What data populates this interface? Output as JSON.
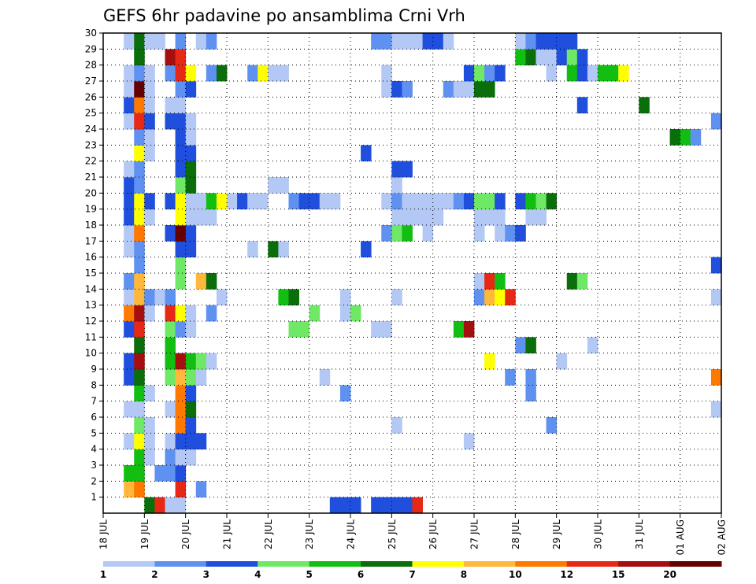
{
  "chart_data": {
    "type": "heatmap",
    "title": "GEFS 6hr padavine po ansamblima Crni Vrh",
    "xlabel": "",
    "ylabel": "",
    "x_ticks": [
      "18 JUL",
      "19 JUL",
      "20 JUL",
      "21 JUL",
      "22 JUL",
      "23 JUL",
      "24 JUL",
      "25 JUL",
      "26 JUL",
      "27 JUL",
      "28 JUL",
      "29 JUL",
      "30 JUL",
      "31 JUL",
      "01 AUG",
      "02 AUG"
    ],
    "y_ticks": [
      "1",
      "2",
      "3",
      "4",
      "5",
      "6",
      "7",
      "8",
      "9",
      "10",
      "11",
      "12",
      "13",
      "14",
      "15",
      "16",
      "17",
      "18",
      "19",
      "20",
      "21",
      "22",
      "23",
      "24",
      "25",
      "26",
      "27",
      "28",
      "29",
      "30"
    ],
    "x_steps_per_day": 4,
    "x_range_steps": [
      0,
      60
    ],
    "y_range": [
      0,
      30
    ],
    "grid": true,
    "colorbar": {
      "labels": [
        "1",
        "2",
        "3",
        "4",
        "5",
        "6",
        "7",
        "8",
        "10",
        "12",
        "15",
        "20"
      ],
      "colors": [
        "#b4c8f5",
        "#5f91f0",
        "#1f4fdc",
        "#6fe866",
        "#12be12",
        "#0a6e0a",
        "#ffff00",
        "#ffb83c",
        "#ff7800",
        "#e62814",
        "#a50f0f",
        "#640000"
      ]
    },
    "cells": [
      [
        4,
        0,
        5
      ],
      [
        5,
        0,
        9
      ],
      [
        6,
        0,
        0
      ],
      [
        7,
        0,
        0
      ],
      [
        22,
        0,
        2
      ],
      [
        23,
        0,
        2
      ],
      [
        24,
        0,
        2
      ],
      [
        26,
        0,
        2
      ],
      [
        27,
        0,
        2
      ],
      [
        28,
        0,
        2
      ],
      [
        29,
        0,
        2
      ],
      [
        30,
        0,
        9
      ],
      [
        2,
        1,
        7
      ],
      [
        3,
        1,
        8
      ],
      [
        7,
        1,
        9
      ],
      [
        9,
        1,
        1
      ],
      [
        2,
        2,
        4
      ],
      [
        3,
        2,
        4
      ],
      [
        5,
        2,
        1
      ],
      [
        6,
        2,
        1
      ],
      [
        7,
        2,
        2
      ],
      [
        3,
        3,
        4
      ],
      [
        4,
        3,
        0
      ],
      [
        6,
        3,
        1
      ],
      [
        7,
        3,
        0
      ],
      [
        8,
        3,
        0
      ],
      [
        2,
        4,
        0
      ],
      [
        3,
        4,
        6
      ],
      [
        4,
        4,
        0
      ],
      [
        6,
        4,
        0
      ],
      [
        7,
        4,
        2
      ],
      [
        8,
        4,
        2
      ],
      [
        9,
        4,
        2
      ],
      [
        35,
        4,
        0
      ],
      [
        3,
        5,
        3
      ],
      [
        4,
        5,
        0
      ],
      [
        7,
        5,
        8
      ],
      [
        8,
        5,
        2
      ],
      [
        28,
        5,
        0
      ],
      [
        43,
        5,
        1
      ],
      [
        2,
        6,
        0
      ],
      [
        3,
        6,
        0
      ],
      [
        6,
        6,
        0
      ],
      [
        7,
        6,
        8
      ],
      [
        8,
        6,
        5
      ],
      [
        59,
        6,
        0
      ],
      [
        3,
        7,
        4
      ],
      [
        4,
        7,
        0
      ],
      [
        7,
        7,
        8
      ],
      [
        8,
        7,
        2
      ],
      [
        23,
        7,
        1
      ],
      [
        41,
        7,
        1
      ],
      [
        2,
        8,
        2
      ],
      [
        3,
        8,
        5
      ],
      [
        6,
        8,
        3
      ],
      [
        7,
        8,
        7
      ],
      [
        8,
        8,
        3
      ],
      [
        9,
        8,
        0
      ],
      [
        21,
        8,
        0
      ],
      [
        39,
        8,
        1
      ],
      [
        41,
        8,
        1
      ],
      [
        59,
        8,
        8
      ],
      [
        2,
        9,
        2
      ],
      [
        3,
        9,
        10
      ],
      [
        6,
        9,
        4
      ],
      [
        7,
        9,
        10
      ],
      [
        8,
        9,
        4
      ],
      [
        9,
        9,
        3
      ],
      [
        10,
        9,
        0
      ],
      [
        37,
        9,
        6
      ],
      [
        44,
        9,
        0
      ],
      [
        3,
        10,
        5
      ],
      [
        6,
        10,
        4
      ],
      [
        40,
        10,
        1
      ],
      [
        41,
        10,
        5
      ],
      [
        47,
        10,
        0
      ],
      [
        2,
        11,
        2
      ],
      [
        3,
        11,
        9
      ],
      [
        6,
        11,
        3
      ],
      [
        7,
        11,
        1
      ],
      [
        8,
        11,
        0
      ],
      [
        18,
        11,
        3
      ],
      [
        19,
        11,
        3
      ],
      [
        26,
        11,
        0
      ],
      [
        27,
        11,
        0
      ],
      [
        34,
        11,
        4
      ],
      [
        35,
        11,
        10
      ],
      [
        2,
        12,
        8
      ],
      [
        3,
        12,
        10
      ],
      [
        4,
        12,
        0
      ],
      [
        6,
        12,
        9
      ],
      [
        7,
        12,
        6
      ],
      [
        8,
        12,
        0
      ],
      [
        10,
        12,
        1
      ],
      [
        20,
        12,
        3
      ],
      [
        23,
        12,
        0
      ],
      [
        24,
        12,
        3
      ],
      [
        2,
        13,
        0
      ],
      [
        3,
        13,
        7
      ],
      [
        4,
        13,
        1
      ],
      [
        5,
        13,
        0
      ],
      [
        6,
        13,
        1
      ],
      [
        11,
        13,
        0
      ],
      [
        17,
        13,
        4
      ],
      [
        18,
        13,
        5
      ],
      [
        23,
        13,
        0
      ],
      [
        28,
        13,
        0
      ],
      [
        36,
        13,
        1
      ],
      [
        37,
        13,
        7
      ],
      [
        38,
        13,
        6
      ],
      [
        39,
        13,
        9
      ],
      [
        59,
        13,
        0
      ],
      [
        2,
        14,
        1
      ],
      [
        3,
        14,
        7
      ],
      [
        7,
        14,
        3
      ],
      [
        9,
        14,
        7
      ],
      [
        10,
        14,
        5
      ],
      [
        36,
        14,
        0
      ],
      [
        37,
        14,
        9
      ],
      [
        38,
        14,
        4
      ],
      [
        45,
        14,
        5
      ],
      [
        46,
        14,
        3
      ],
      [
        3,
        15,
        1
      ],
      [
        7,
        15,
        3
      ],
      [
        59,
        15,
        2
      ],
      [
        2,
        16,
        0
      ],
      [
        3,
        16,
        1
      ],
      [
        7,
        16,
        2
      ],
      [
        8,
        16,
        2
      ],
      [
        14,
        16,
        0
      ],
      [
        16,
        16,
        5
      ],
      [
        17,
        16,
        0
      ],
      [
        25,
        16,
        2
      ],
      [
        2,
        17,
        0
      ],
      [
        3,
        17,
        8
      ],
      [
        6,
        17,
        2
      ],
      [
        7,
        17,
        11
      ],
      [
        8,
        17,
        2
      ],
      [
        27,
        17,
        1
      ],
      [
        28,
        17,
        3
      ],
      [
        29,
        17,
        4
      ],
      [
        31,
        17,
        0
      ],
      [
        36,
        17,
        0
      ],
      [
        38,
        17,
        0
      ],
      [
        39,
        17,
        1
      ],
      [
        40,
        17,
        2
      ],
      [
        2,
        18,
        2
      ],
      [
        3,
        18,
        6
      ],
      [
        4,
        18,
        0
      ],
      [
        7,
        18,
        6
      ],
      [
        8,
        18,
        0
      ],
      [
        9,
        18,
        0
      ],
      [
        10,
        18,
        0
      ],
      [
        28,
        18,
        0
      ],
      [
        29,
        18,
        0
      ],
      [
        30,
        18,
        0
      ],
      [
        31,
        18,
        0
      ],
      [
        32,
        18,
        0
      ],
      [
        36,
        18,
        0
      ],
      [
        37,
        18,
        0
      ],
      [
        38,
        18,
        0
      ],
      [
        41,
        18,
        0
      ],
      [
        42,
        18,
        0
      ],
      [
        2,
        19,
        2
      ],
      [
        3,
        19,
        6
      ],
      [
        4,
        19,
        2
      ],
      [
        6,
        19,
        2
      ],
      [
        7,
        19,
        6
      ],
      [
        8,
        19,
        0
      ],
      [
        9,
        19,
        0
      ],
      [
        10,
        19,
        4
      ],
      [
        11,
        19,
        6
      ],
      [
        12,
        19,
        0
      ],
      [
        13,
        19,
        2
      ],
      [
        14,
        19,
        0
      ],
      [
        15,
        19,
        0
      ],
      [
        18,
        19,
        1
      ],
      [
        19,
        19,
        2
      ],
      [
        20,
        19,
        2
      ],
      [
        21,
        19,
        0
      ],
      [
        22,
        19,
        0
      ],
      [
        27,
        19,
        0
      ],
      [
        28,
        19,
        1
      ],
      [
        29,
        19,
        0
      ],
      [
        30,
        19,
        0
      ],
      [
        31,
        19,
        0
      ],
      [
        32,
        19,
        0
      ],
      [
        33,
        19,
        0
      ],
      [
        34,
        19,
        1
      ],
      [
        35,
        19,
        2
      ],
      [
        36,
        19,
        3
      ],
      [
        37,
        19,
        3
      ],
      [
        38,
        19,
        2
      ],
      [
        40,
        19,
        2
      ],
      [
        41,
        19,
        4
      ],
      [
        42,
        19,
        3
      ],
      [
        43,
        19,
        5
      ],
      [
        2,
        20,
        2
      ],
      [
        3,
        20,
        1
      ],
      [
        7,
        20,
        3
      ],
      [
        8,
        20,
        5
      ],
      [
        16,
        20,
        0
      ],
      [
        17,
        20,
        0
      ],
      [
        28,
        20,
        0
      ],
      [
        2,
        21,
        0
      ],
      [
        3,
        21,
        1
      ],
      [
        7,
        21,
        2
      ],
      [
        8,
        21,
        5
      ],
      [
        28,
        21,
        2
      ],
      [
        29,
        21,
        2
      ],
      [
        3,
        22,
        6
      ],
      [
        4,
        22,
        0
      ],
      [
        7,
        22,
        2
      ],
      [
        8,
        22,
        2
      ],
      [
        25,
        22,
        2
      ],
      [
        3,
        23,
        1
      ],
      [
        4,
        23,
        0
      ],
      [
        7,
        23,
        2
      ],
      [
        8,
        23,
        0
      ],
      [
        55,
        23,
        5
      ],
      [
        56,
        23,
        4
      ],
      [
        57,
        23,
        1
      ],
      [
        2,
        24,
        0
      ],
      [
        3,
        24,
        9
      ],
      [
        4,
        24,
        2
      ],
      [
        6,
        24,
        2
      ],
      [
        7,
        24,
        2
      ],
      [
        8,
        24,
        0
      ],
      [
        59,
        24,
        1
      ],
      [
        2,
        25,
        2
      ],
      [
        3,
        25,
        8
      ],
      [
        4,
        25,
        0
      ],
      [
        6,
        25,
        0
      ],
      [
        7,
        25,
        0
      ],
      [
        46,
        25,
        2
      ],
      [
        52,
        25,
        5
      ],
      [
        2,
        26,
        0
      ],
      [
        3,
        26,
        11
      ],
      [
        4,
        26,
        0
      ],
      [
        7,
        26,
        1
      ],
      [
        8,
        26,
        2
      ],
      [
        27,
        26,
        0
      ],
      [
        28,
        26,
        2
      ],
      [
        29,
        26,
        1
      ],
      [
        33,
        26,
        1
      ],
      [
        34,
        26,
        0
      ],
      [
        35,
        26,
        0
      ],
      [
        36,
        26,
        5
      ],
      [
        37,
        26,
        5
      ],
      [
        2,
        27,
        0
      ],
      [
        3,
        27,
        1
      ],
      [
        4,
        27,
        0
      ],
      [
        6,
        27,
        1
      ],
      [
        7,
        27,
        9
      ],
      [
        8,
        27,
        6
      ],
      [
        10,
        27,
        1
      ],
      [
        11,
        27,
        5
      ],
      [
        14,
        27,
        1
      ],
      [
        15,
        27,
        6
      ],
      [
        16,
        27,
        0
      ],
      [
        17,
        27,
        0
      ],
      [
        27,
        27,
        0
      ],
      [
        35,
        27,
        2
      ],
      [
        36,
        27,
        3
      ],
      [
        37,
        27,
        1
      ],
      [
        38,
        27,
        2
      ],
      [
        43,
        27,
        0
      ],
      [
        45,
        27,
        4
      ],
      [
        46,
        27,
        2
      ],
      [
        47,
        27,
        0
      ],
      [
        48,
        27,
        4
      ],
      [
        49,
        27,
        4
      ],
      [
        50,
        27,
        6
      ],
      [
        3,
        28,
        5
      ],
      [
        6,
        28,
        10
      ],
      [
        7,
        28,
        9
      ],
      [
        40,
        28,
        4
      ],
      [
        41,
        28,
        5
      ],
      [
        42,
        28,
        0
      ],
      [
        43,
        28,
        0
      ],
      [
        44,
        28,
        2
      ],
      [
        45,
        28,
        3
      ],
      [
        46,
        28,
        2
      ],
      [
        2,
        29,
        0
      ],
      [
        3,
        29,
        5
      ],
      [
        4,
        29,
        0
      ],
      [
        5,
        29,
        0
      ],
      [
        7,
        29,
        1
      ],
      [
        9,
        29,
        0
      ],
      [
        10,
        29,
        1
      ],
      [
        26,
        29,
        1
      ],
      [
        27,
        29,
        1
      ],
      [
        28,
        29,
        0
      ],
      [
        29,
        29,
        0
      ],
      [
        30,
        29,
        0
      ],
      [
        31,
        29,
        2
      ],
      [
        32,
        29,
        2
      ],
      [
        33,
        29,
        0
      ],
      [
        40,
        29,
        0
      ],
      [
        41,
        29,
        1
      ],
      [
        42,
        29,
        2
      ],
      [
        43,
        29,
        2
      ],
      [
        44,
        29,
        2
      ],
      [
        45,
        29,
        2
      ]
    ]
  }
}
